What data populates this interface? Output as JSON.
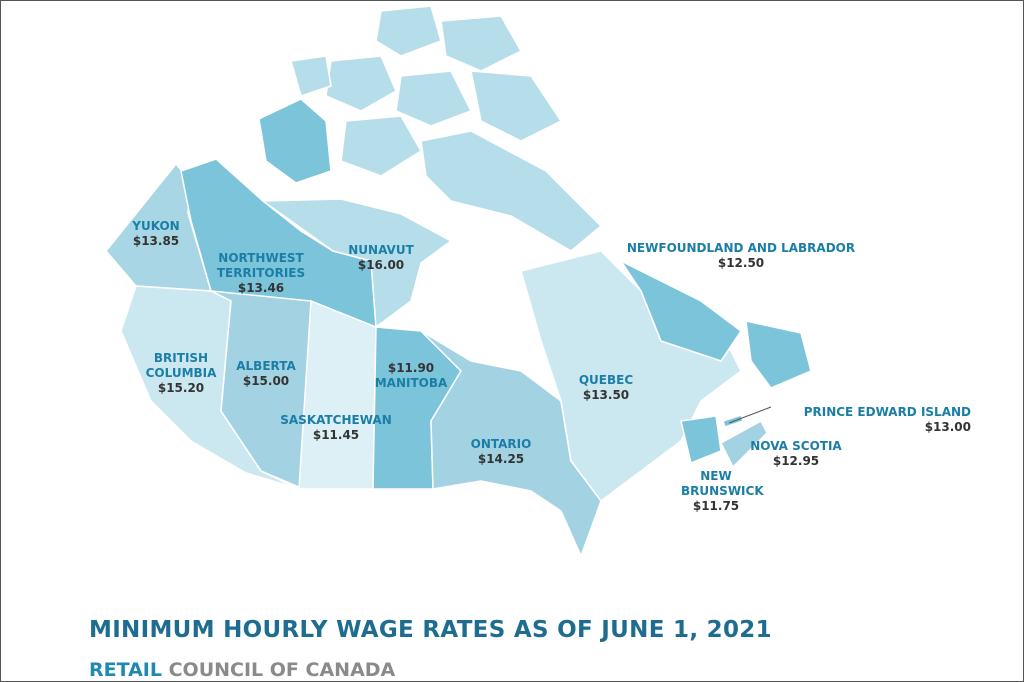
{
  "regions": [
    {
      "name": "YUKON",
      "wage": "$13.85"
    },
    {
      "name": "NORTHWEST TERRITORIES",
      "wage": "$13.46"
    },
    {
      "name": "NUNAVUT",
      "wage": "$16.00"
    },
    {
      "name": "NEWFOUNDLAND AND LABRADOR",
      "wage": "$12.50"
    },
    {
      "name": "BRITISH COLUMBIA",
      "wage": "$15.20"
    },
    {
      "name": "ALBERTA",
      "wage": "$15.00"
    },
    {
      "name": "MANITOBA",
      "wage": "$11.90"
    },
    {
      "name": "SASKATCHEWAN",
      "wage": "$11.45"
    },
    {
      "name": "QUEBEC",
      "wage": "$13.50"
    },
    {
      "name": "PRINCE EDWARD ISLAND",
      "wage": "$13.00"
    },
    {
      "name": "ONTARIO",
      "wage": "$14.25"
    },
    {
      "name": "NOVA SCOTIA",
      "wage": "$12.95"
    },
    {
      "name": "NEW BRUNSWICK",
      "wage": "$11.75"
    }
  ],
  "title": "MINIMUM HOURLY WAGE RATES AS OF JUNE 1, 2021",
  "subtitle": {
    "first": "RETAIL",
    "rest": "COUNCIL OF CANADA"
  }
}
